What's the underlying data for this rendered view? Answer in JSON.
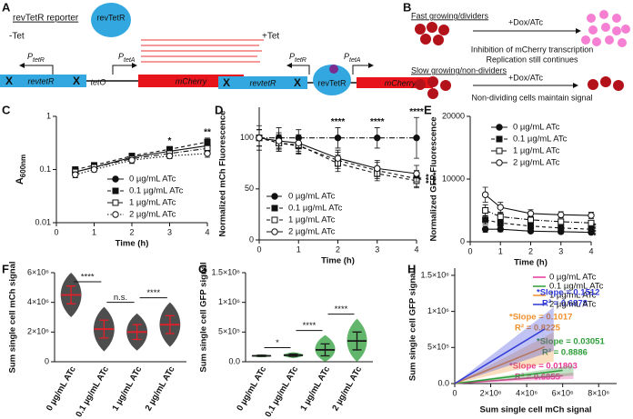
{
  "panel_labels": [
    "A",
    "B",
    "C",
    "D",
    "E",
    "F",
    "G",
    "H"
  ],
  "diagram_a": {
    "title": "revTetR reporter",
    "minus_tet": "-Tet",
    "plus_tet": "+Tet",
    "protein": "revTetR",
    "gene": "revtetR",
    "x_mark": "X",
    "operator": "tetO",
    "reporter": "mCherry",
    "p_tetr": {
      "letter": "P",
      "sub": "tetR"
    },
    "p_teta": {
      "letter": "P",
      "sub": "tetA"
    }
  },
  "diagram_b": {
    "fast": "Fast growing/dividers",
    "treatment": "+Dox/ATc",
    "fast_note_1": "Inhibition of mCherry transcription",
    "fast_note_2": "Replication still continues",
    "slow": "Slow growing/non-dividers",
    "slow_note": "Non-dividing cells maintain signal"
  },
  "chart_data": [
    {
      "type": "line",
      "ylabel": {
        "text": "A",
        "sub": "600nm"
      },
      "xlabel": "Time (h)",
      "log_y": true,
      "x": [
        0.5,
        1,
        2,
        3,
        4
      ],
      "xlim": [
        0,
        4
      ],
      "xticks": [
        0,
        1,
        2,
        3,
        4
      ],
      "ylim": [
        0.01,
        1
      ],
      "yticks": [
        0.01,
        0.1,
        1
      ],
      "legend": "lower right",
      "series": [
        {
          "name": "0 µg/mL ATc",
          "marker": "circle",
          "filled": true,
          "dash": "solid",
          "values": [
            0.09,
            0.11,
            0.17,
            0.22,
            0.28
          ],
          "errors": [
            0.01,
            0.01,
            0.02,
            0.03,
            0.05
          ]
        },
        {
          "name": "0.1 µg/mL ATc",
          "marker": "square",
          "filled": true,
          "dash": "dashed",
          "values": [
            0.1,
            0.12,
            0.18,
            0.24,
            0.33
          ],
          "errors": [
            0.01,
            0.01,
            0.02,
            0.03,
            0.06
          ]
        },
        {
          "name": "1 µg/mL ATc",
          "marker": "square",
          "filled": false,
          "dash": "dashdot",
          "values": [
            0.09,
            0.11,
            0.16,
            0.2,
            0.25
          ],
          "errors": [
            0.01,
            0.01,
            0.02,
            0.02,
            0.04
          ]
        },
        {
          "name": "2 µg/mL ATc",
          "marker": "circle",
          "filled": false,
          "dash": "dotted",
          "values": [
            0.08,
            0.1,
            0.15,
            0.18,
            0.2
          ],
          "errors": [
            0.01,
            0.01,
            0.02,
            0.02,
            0.03
          ]
        }
      ],
      "annotations": [
        {
          "x": 3,
          "label": "*"
        },
        {
          "x": 4,
          "label": "**"
        }
      ]
    },
    {
      "type": "line",
      "ylabel": "Normalized mCh Fluorescence",
      "xlabel": "Time (h)",
      "x": [
        0,
        0.5,
        1,
        2,
        3,
        4
      ],
      "xlim": [
        0,
        4
      ],
      "xticks": [
        0,
        1,
        2,
        3,
        4
      ],
      "ylim": [
        0,
        130
      ],
      "yticks": [
        0,
        50,
        100
      ],
      "legend": "lower left",
      "series": [
        {
          "name": "0 µg/mL ATc",
          "marker": "circle",
          "filled": true,
          "dash": "dashdot",
          "values": [
            100,
            100,
            100,
            100,
            100,
            100
          ],
          "errors": [
            12,
            10,
            8,
            10,
            10,
            20
          ]
        },
        {
          "name": "0.1 µg/mL ATc",
          "marker": "square",
          "filled": true,
          "dash": "dashed",
          "values": [
            100,
            95,
            92,
            78,
            68,
            60
          ],
          "errors": [
            8,
            8,
            8,
            8,
            8,
            8
          ]
        },
        {
          "name": "1 µg/mL ATc",
          "marker": "square",
          "filled": false,
          "dash": "dashed",
          "values": [
            100,
            95,
            93,
            75,
            65,
            58
          ],
          "errors": [
            8,
            8,
            8,
            8,
            7,
            7
          ]
        },
        {
          "name": "2 µg/mL ATc",
          "marker": "circle",
          "filled": false,
          "dash": "solid",
          "values": [
            100,
            97,
            95,
            80,
            70,
            65
          ],
          "errors": [
            8,
            8,
            8,
            8,
            8,
            8
          ]
        }
      ],
      "annotations": [
        {
          "x": 2,
          "label": "****"
        },
        {
          "x": 3,
          "label": "****"
        },
        {
          "x": 4,
          "label": "****"
        }
      ],
      "side_labels": [
        "*",
        "***",
        "****"
      ]
    },
    {
      "type": "line",
      "ylabel": "Normalized GFP Fluorescence",
      "xlabel": "Time (h)",
      "x": [
        0.5,
        1,
        2,
        3,
        4
      ],
      "xlim": [
        0,
        4
      ],
      "xticks": [
        0,
        1,
        2,
        3,
        4
      ],
      "ylim": [
        0,
        20000
      ],
      "yticks": [
        0,
        10000,
        20000
      ],
      "legend": "upper right",
      "series": [
        {
          "name": "0 µg/mL ATc",
          "marker": "circle",
          "filled": true,
          "dash": "solid",
          "values": [
            2000,
            2000,
            1700,
            1600,
            1500
          ],
          "errors": [
            500,
            400,
            300,
            300,
            300
          ]
        },
        {
          "name": "0.1 µg/mL ATc",
          "marker": "square",
          "filled": true,
          "dash": "dashed",
          "values": [
            3500,
            3000,
            2500,
            2200,
            2000
          ],
          "errors": [
            700,
            500,
            400,
            300,
            300
          ]
        },
        {
          "name": "1 µg/mL ATc",
          "marker": "square",
          "filled": false,
          "dash": "dashdot",
          "values": [
            5000,
            4000,
            3500,
            3200,
            3000
          ],
          "errors": [
            900,
            600,
            500,
            400,
            400
          ]
        },
        {
          "name": "2 µg/mL ATc",
          "marker": "circle",
          "filled": false,
          "dash": "solid",
          "values": [
            7500,
            5500,
            4500,
            4300,
            4200
          ],
          "errors": [
            1200,
            800,
            600,
            500,
            500
          ]
        }
      ],
      "side_labels": [
        "****"
      ]
    },
    {
      "type": "strip",
      "ylabel": "Sum single cell mCh signal",
      "categories": [
        "0 µg/mL ATc",
        "0.1 µg/mL ATc",
        "1 µg/mL ATc",
        "2 µg/mL ATc"
      ],
      "values": [
        4500000,
        2200000,
        2000000,
        2500000
      ],
      "errors": [
        600000,
        600000,
        500000,
        600000
      ],
      "color": "#111111",
      "mean_color": "#e0202a",
      "ylim": [
        0,
        6000000
      ],
      "yticks": [
        0,
        {
          "value": 2000000,
          "label": "2×10⁶"
        },
        {
          "value": 4000000,
          "label": "4×10⁶"
        },
        {
          "value": 6000000,
          "label": "6×10⁶"
        }
      ],
      "comparisons": [
        "****",
        "n.s.",
        "****"
      ]
    },
    {
      "type": "strip",
      "ylabel": "Sum single cell GFP signal",
      "categories": [
        "0 µg/mL ATc",
        "0.1 µg/mL ATc",
        "1 µg/mL ATc",
        "2 µg/mL ATc"
      ],
      "values": [
        100000,
        110000,
        200000,
        350000
      ],
      "errors": [
        10000,
        20000,
        100000,
        150000
      ],
      "color": "#2e9e3a",
      "mean_color": "#1a1a1a",
      "ylim": [
        0,
        1500000
      ],
      "yticks": [
        {
          "value": 0,
          "label": "0.0"
        },
        {
          "value": 500000,
          "label": "5×10⁵"
        },
        {
          "value": 1000000,
          "label": "1×10⁶"
        },
        {
          "value": 1500000,
          "label": "1.5×10⁶"
        }
      ],
      "comparisons": [
        "*",
        "****",
        "****"
      ]
    },
    {
      "type": "scatter",
      "xlabel": "Sum single cell mCh signal",
      "ylabel": "Sum single cell GFP signal",
      "xlim": [
        0,
        9000000
      ],
      "xticks": [
        0,
        {
          "value": 2000000,
          "label": "2×10⁶"
        },
        {
          "value": 4000000,
          "label": "4×10⁶"
        },
        {
          "value": 6000000,
          "label": "6×10⁶"
        },
        {
          "value": 8000000,
          "label": "8×10⁶"
        }
      ],
      "ylim": [
        0,
        1600000
      ],
      "yticks": [
        {
          "value": 0,
          "label": "0.0"
        },
        {
          "value": 500000,
          "label": "5×10⁵"
        },
        {
          "value": 1000000,
          "label": "1×10⁶"
        },
        {
          "value": 1500000,
          "label": "1.5×10⁶"
        }
      ],
      "legend": "upper right",
      "series": [
        {
          "name": "0 µg/mL ATc",
          "color": "#e6379b",
          "slope": 0.01803,
          "slope_label": "*Slope = 0.01803",
          "r2_label": "R² = 0.6855",
          "x_range": [
            0,
            6000000
          ]
        },
        {
          "name": "0.1 µg/mL ATc",
          "color": "#2e9e3a",
          "slope": 0.03051,
          "slope_label": "*Slope = 0.03051",
          "r2_label": "R² = 0.8886",
          "x_range": [
            0,
            6000000
          ]
        },
        {
          "name": "1 µg/mL ATc",
          "color": "#f0912e",
          "slope": 0.1017,
          "slope_label": "*Slope = 0.1017",
          "r2_label": "R² = 0.8225",
          "x_range": [
            0,
            5000000
          ]
        },
        {
          "name": "2 µg/mL ATc",
          "color": "#2f39d6",
          "slope": 0.1512,
          "slope_label": "*Slope = 0.1512",
          "r2_label": "R² = 0.6878",
          "x_range": [
            0,
            5000000
          ]
        }
      ]
    }
  ]
}
